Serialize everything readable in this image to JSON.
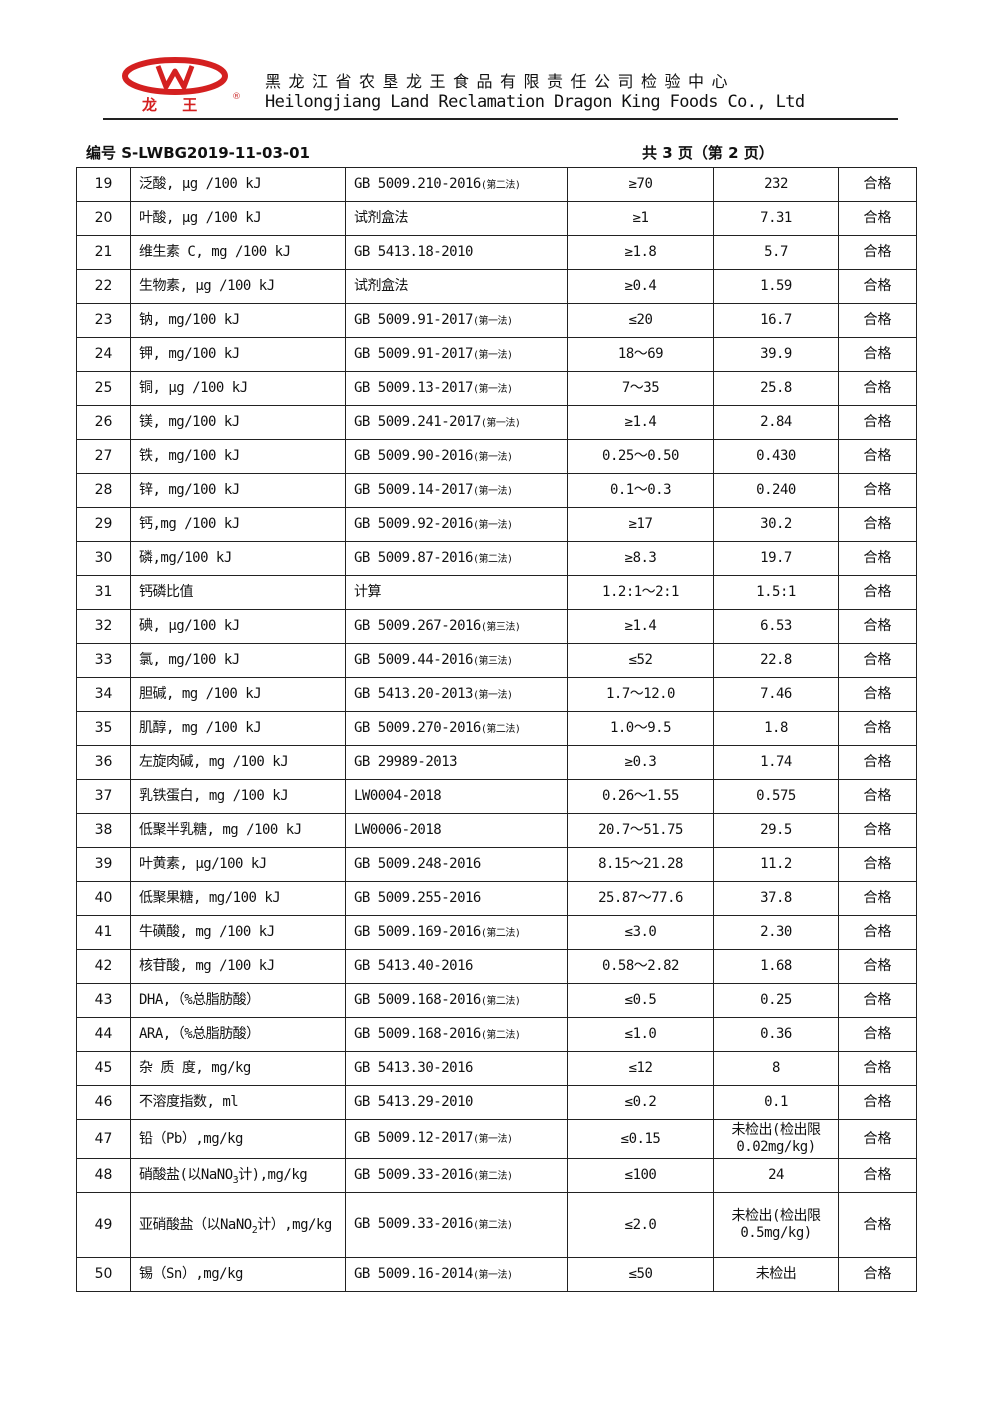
{
  "header": {
    "logo_text": "龙 王",
    "registered": "®",
    "company_cn": "黑龙江省农垦龙王食品有限责任公司检验中心",
    "company_en": "Heilongjiang Land Reclamation Dragon King Foods Co., Ltd",
    "doc_no": "编号 S-LWBG2019-11-03-01",
    "page_no": "共 3 页（第 2 页）",
    "brand_color": "#d42020"
  },
  "rows": [
    {
      "no": "19",
      "item": "泛酸, μg /100 kJ",
      "std": "GB 5009.210-2016",
      "note": "(第二法)",
      "limit": "≥70",
      "result": "232",
      "verdict": "合格"
    },
    {
      "no": "20",
      "item": "叶酸, μg /100 kJ",
      "std": "试剂盒法",
      "note": "",
      "limit": "≥1",
      "result": "7.31",
      "verdict": "合格"
    },
    {
      "no": "21",
      "item": "维生素 C, mg /100 kJ",
      "std": "GB 5413.18-2010",
      "note": "",
      "limit": "≥1.8",
      "result": "5.7",
      "verdict": "合格"
    },
    {
      "no": "22",
      "item": "生物素, μg /100 kJ",
      "std": "试剂盒法",
      "note": "",
      "limit": "≥0.4",
      "result": "1.59",
      "verdict": "合格"
    },
    {
      "no": "23",
      "item": "钠, mg/100 kJ",
      "std": "GB 5009.91-2017",
      "note": "(第一法)",
      "limit": "≤20",
      "result": "16.7",
      "verdict": "合格"
    },
    {
      "no": "24",
      "item": "钾, mg/100 kJ",
      "std": "GB 5009.91-2017",
      "note": "(第一法)",
      "limit": "18～69",
      "result": "39.9",
      "verdict": "合格"
    },
    {
      "no": "25",
      "item": "铜, μg /100 kJ",
      "std": "GB 5009.13-2017",
      "note": "(第一法)",
      "limit": "7～35",
      "result": "25.8",
      "verdict": "合格"
    },
    {
      "no": "26",
      "item": "镁, mg/100 kJ",
      "std": "GB 5009.241-2017",
      "note": "(第一法)",
      "limit": "≥1.4",
      "result": "2.84",
      "verdict": "合格"
    },
    {
      "no": "27",
      "item": "铁, mg/100 kJ",
      "std": "GB 5009.90-2016",
      "note": "(第一法)",
      "limit": "0.25～0.50",
      "result": "0.430",
      "verdict": "合格"
    },
    {
      "no": "28",
      "item": "锌, mg/100 kJ",
      "std": "GB 5009.14-2017",
      "note": "(第一法)",
      "limit": "0.1～0.3",
      "result": "0.240",
      "verdict": "合格"
    },
    {
      "no": "29",
      "item": "钙,mg /100 kJ",
      "std": "GB 5009.92-2016",
      "note": "(第一法)",
      "limit": "≥17",
      "result": "30.2",
      "verdict": "合格"
    },
    {
      "no": "30",
      "item": "磷,mg/100 kJ",
      "std": "GB 5009.87-2016",
      "note": "(第二法)",
      "limit": "≥8.3",
      "result": "19.7",
      "verdict": "合格"
    },
    {
      "no": "31",
      "item": "钙磷比值",
      "std": "计算",
      "note": "",
      "limit": "1.2:1～2:1",
      "result": "1.5:1",
      "verdict": "合格"
    },
    {
      "no": "32",
      "item": "碘, μg/100 kJ",
      "std": "GB 5009.267-2016",
      "note": "(第三法)",
      "limit": "≥1.4",
      "result": "6.53",
      "verdict": "合格"
    },
    {
      "no": "33",
      "item": "氯, mg/100 kJ",
      "std": "GB 5009.44-2016",
      "note": "(第三法)",
      "limit": "≤52",
      "result": "22.8",
      "verdict": "合格"
    },
    {
      "no": "34",
      "item": "胆碱, mg /100 kJ",
      "std": "GB 5413.20-2013",
      "note": "(第一法)",
      "limit": "1.7～12.0",
      "result": "7.46",
      "verdict": "合格"
    },
    {
      "no": "35",
      "item": "肌醇, mg /100 kJ",
      "std": "GB 5009.270-2016",
      "note": "(第二法)",
      "limit": "1.0～9.5",
      "result": "1.8",
      "verdict": "合格"
    },
    {
      "no": "36",
      "item": "左旋肉碱, mg /100 kJ",
      "std": "GB 29989-2013",
      "note": "",
      "limit": "≥0.3",
      "result": "1.74",
      "verdict": "合格"
    },
    {
      "no": "37",
      "item": "乳铁蛋白, mg /100 kJ",
      "std": "LW0004-2018",
      "note": "",
      "limit": "0.26～1.55",
      "result": "0.575",
      "verdict": "合格"
    },
    {
      "no": "38",
      "item": "低聚半乳糖, mg /100 kJ",
      "std": "LW0006-2018",
      "note": "",
      "limit": "20.7～51.75",
      "result": "29.5",
      "verdict": "合格"
    },
    {
      "no": "39",
      "item": "叶黄素, μg/100 kJ",
      "std": "GB 5009.248-2016",
      "note": "",
      "limit": "8.15～21.28",
      "result": "11.2",
      "verdict": "合格"
    },
    {
      "no": "40",
      "item": "低聚果糖, mg/100 kJ",
      "std": "GB 5009.255-2016",
      "note": "",
      "limit": "25.87～77.6",
      "result": "37.8",
      "verdict": "合格"
    },
    {
      "no": "41",
      "item": "牛磺酸, mg /100 kJ",
      "std": "GB 5009.169-2016",
      "note": "(第二法)",
      "limit": "≤3.0",
      "result": "2.30",
      "verdict": "合格"
    },
    {
      "no": "42",
      "item": "核苷酸, mg /100 kJ",
      "std": "GB 5413.40-2016",
      "note": "",
      "limit": "0.58～2.82",
      "result": "1.68",
      "verdict": "合格"
    },
    {
      "no": "43",
      "item": "DHA,（%总脂肪酸）",
      "std": "GB 5009.168-2016",
      "note": "(第二法)",
      "limit": "≤0.5",
      "result": "0.25",
      "verdict": "合格"
    },
    {
      "no": "44",
      "item": "ARA,（%总脂肪酸）",
      "std": "GB 5009.168-2016",
      "note": "(第二法)",
      "limit": "≤1.0",
      "result": "0.36",
      "verdict": "合格"
    },
    {
      "no": "45",
      "item": "杂 质 度, mg/kg",
      "std": "GB 5413.30-2016",
      "note": "",
      "limit": "≤12",
      "result": "8",
      "verdict": "合格"
    },
    {
      "no": "46",
      "item": "不溶度指数, ml",
      "std": "GB 5413.29-2010",
      "note": "",
      "limit": "≤0.2",
      "result": "0.1",
      "verdict": "合格"
    },
    {
      "no": "47",
      "item": "铅（Pb）,mg/kg",
      "std": "GB 5009.12-2017",
      "note": "(第一法)",
      "limit": "≤0.15",
      "result": "未检出(检出限 0.02mg/kg)",
      "verdict": "合格",
      "size": "tall",
      "small": true
    },
    {
      "no": "48",
      "item": "硝酸盐(以NaNO",
      "item_sub": "3",
      "item_post": "计),mg/kg",
      "std": "GB 5009.33-2016",
      "note": "(第二法)",
      "limit": "≤100",
      "result": "24",
      "verdict": "合格"
    },
    {
      "no": "49",
      "item": "亚硝酸盐（以NaNO",
      "item_sub": "2",
      "item_post": "计）,mg/kg",
      "std": "GB 5009.33-2016",
      "note": "(第二法)",
      "limit": "≤2.0",
      "result": "未检出(检出限 0.5mg/kg)",
      "verdict": "合格",
      "size": "xtall"
    },
    {
      "no": "50",
      "item": "锡（Sn）,mg/kg",
      "std": "GB 5009.16-2014",
      "note": "(第一法)",
      "limit": "≤50",
      "result": "未检出",
      "verdict": "合格"
    }
  ]
}
